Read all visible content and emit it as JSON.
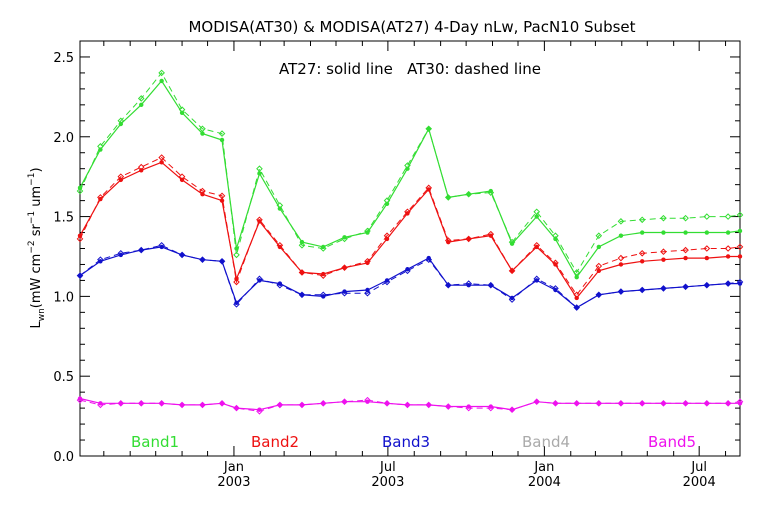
{
  "chart_data": {
    "type": "line",
    "title": "MODISA(AT30) & MODISA(AT27) 4-Day nLw, PacN10 Subset",
    "annotation": "AT27: solid line   AT30: dashed line",
    "ylabel": "L_wn (mW cm^-2 sr^-1 um^-1)",
    "ylabel_parts": {
      "L": "L",
      "sub": "wn",
      "open": "(mW cm",
      "exp1": "−2",
      "sr": " sr",
      "exp2": "−1",
      "um": " um",
      "exp3": "−1",
      "close": ")"
    },
    "ylim": [
      0.0,
      2.6
    ],
    "xlim": [
      "2002-07-04",
      "2004-08-18"
    ],
    "y_ticks": [
      {
        "value": 0.0,
        "label": "0.0"
      },
      {
        "value": 0.5,
        "label": "0.5"
      },
      {
        "value": 1.0,
        "label": "1.0"
      },
      {
        "value": 1.5,
        "label": "1.5"
      },
      {
        "value": 2.0,
        "label": "2.0"
      },
      {
        "value": 2.5,
        "label": "2.5"
      }
    ],
    "x_ticks": [
      {
        "date": "2003-01-01",
        "label1": "Jan",
        "label2": "2003"
      },
      {
        "date": "2003-07-01",
        "label1": "Jul",
        "label2": "2003"
      },
      {
        "date": "2004-01-01",
        "label1": "Jan",
        "label2": "2004"
      },
      {
        "date": "2004-07-01",
        "label1": "Jul",
        "label2": "2004"
      }
    ],
    "grid": false,
    "legend_position": "bottom",
    "x": [
      "2002-07-04",
      "2002-07-28",
      "2002-08-21",
      "2002-09-14",
      "2002-10-08",
      "2002-11-01",
      "2002-11-25",
      "2002-12-18",
      "2003-01-04",
      "2003-01-31",
      "2003-02-24",
      "2003-03-22",
      "2003-04-16",
      "2003-05-11",
      "2003-06-07",
      "2003-06-30",
      "2003-07-24",
      "2003-08-18",
      "2003-09-10",
      "2003-10-04",
      "2003-10-30",
      "2003-11-24",
      "2003-12-23",
      "2004-01-14",
      "2004-02-08",
      "2004-03-05",
      "2004-03-31",
      "2004-04-25",
      "2004-05-20",
      "2004-06-15",
      "2004-07-10",
      "2004-08-04",
      "2004-08-18"
    ],
    "series": [
      {
        "name": "Band1",
        "color": "#33dd33",
        "solid": [
          1.68,
          1.92,
          2.08,
          2.2,
          2.35,
          2.15,
          2.02,
          1.98,
          1.3,
          1.77,
          1.55,
          1.34,
          1.31,
          1.37,
          1.4,
          1.58,
          1.8,
          2.05,
          1.62,
          1.64,
          1.66,
          1.33,
          1.5,
          1.36,
          1.12,
          1.31,
          1.38,
          1.4,
          1.4,
          1.4,
          1.4,
          1.4,
          1.41
        ],
        "dashed": [
          1.66,
          1.94,
          2.1,
          2.24,
          2.4,
          2.17,
          2.05,
          2.02,
          1.26,
          1.8,
          1.57,
          1.32,
          1.3,
          1.36,
          1.41,
          1.6,
          1.82,
          2.05,
          1.62,
          1.64,
          1.65,
          1.34,
          1.53,
          1.38,
          1.15,
          1.38,
          1.47,
          1.48,
          1.49,
          1.49,
          1.5,
          1.5,
          1.51
        ]
      },
      {
        "name": "Band2",
        "color": "#ee1111",
        "solid": [
          1.38,
          1.61,
          1.73,
          1.79,
          1.84,
          1.73,
          1.64,
          1.6,
          1.11,
          1.47,
          1.31,
          1.15,
          1.14,
          1.18,
          1.21,
          1.36,
          1.52,
          1.67,
          1.34,
          1.36,
          1.38,
          1.16,
          1.31,
          1.2,
          0.99,
          1.16,
          1.2,
          1.22,
          1.23,
          1.24,
          1.24,
          1.25,
          1.25
        ],
        "dashed": [
          1.36,
          1.62,
          1.75,
          1.81,
          1.87,
          1.75,
          1.66,
          1.63,
          1.09,
          1.48,
          1.32,
          1.15,
          1.13,
          1.18,
          1.22,
          1.38,
          1.53,
          1.68,
          1.35,
          1.36,
          1.39,
          1.16,
          1.32,
          1.21,
          1.01,
          1.19,
          1.24,
          1.27,
          1.28,
          1.29,
          1.3,
          1.3,
          1.31
        ]
      },
      {
        "name": "Band3",
        "color": "#1111cc",
        "solid": [
          1.13,
          1.22,
          1.26,
          1.29,
          1.31,
          1.26,
          1.23,
          1.22,
          0.96,
          1.1,
          1.08,
          1.01,
          1.0,
          1.03,
          1.04,
          1.1,
          1.17,
          1.24,
          1.07,
          1.07,
          1.07,
          0.99,
          1.1,
          1.04,
          0.93,
          1.01,
          1.03,
          1.04,
          1.05,
          1.06,
          1.07,
          1.08,
          1.08
        ],
        "dashed": [
          1.13,
          1.23,
          1.27,
          1.29,
          1.32,
          1.26,
          1.23,
          1.22,
          0.95,
          1.11,
          1.07,
          1.01,
          1.01,
          1.02,
          1.02,
          1.09,
          1.16,
          1.23,
          1.07,
          1.08,
          1.07,
          0.98,
          1.11,
          1.05,
          0.93,
          1.01,
          1.03,
          1.04,
          1.05,
          1.06,
          1.07,
          1.08,
          1.09
        ]
      },
      {
        "name": "Band4",
        "color": "#aaaaaa",
        "solid": [],
        "dashed": []
      },
      {
        "name": "Band5",
        "color": "#ee11ee",
        "solid": [
          0.36,
          0.33,
          0.33,
          0.33,
          0.33,
          0.32,
          0.32,
          0.33,
          0.3,
          0.29,
          0.32,
          0.32,
          0.33,
          0.34,
          0.34,
          0.33,
          0.32,
          0.32,
          0.31,
          0.31,
          0.31,
          0.29,
          0.34,
          0.33,
          0.33,
          0.33,
          0.33,
          0.33,
          0.33,
          0.33,
          0.33,
          0.33,
          0.33
        ],
        "dashed": [
          0.35,
          0.32,
          0.33,
          0.33,
          0.33,
          0.32,
          0.32,
          0.33,
          0.3,
          0.28,
          0.32,
          0.32,
          0.33,
          0.34,
          0.35,
          0.33,
          0.32,
          0.32,
          0.31,
          0.3,
          0.3,
          0.29,
          0.34,
          0.33,
          0.33,
          0.33,
          0.33,
          0.33,
          0.33,
          0.33,
          0.33,
          0.33,
          0.34
        ]
      }
    ]
  }
}
